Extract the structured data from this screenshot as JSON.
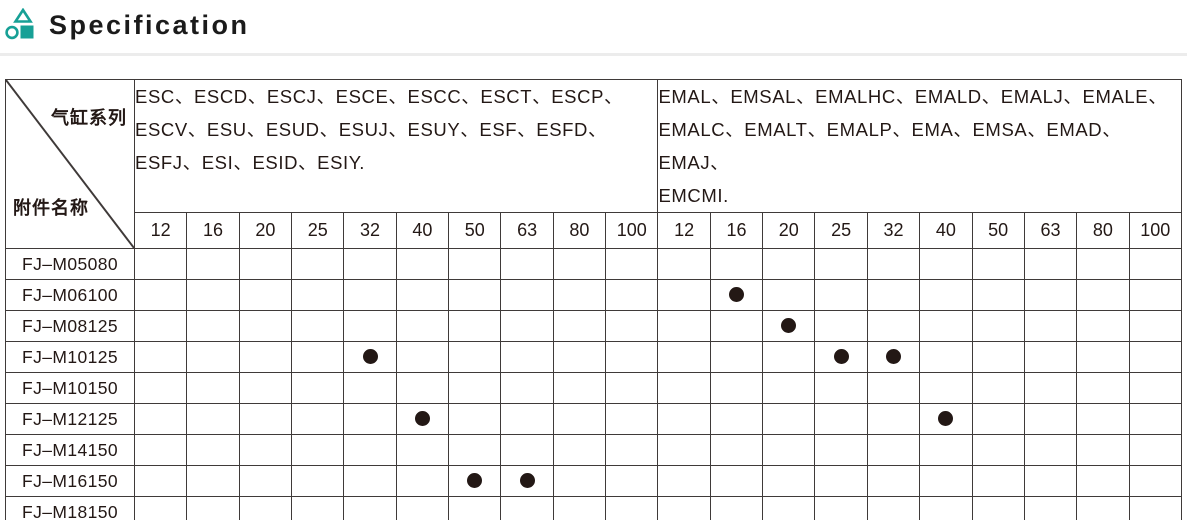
{
  "page": {
    "title": "Specification",
    "accent_color": "#17a096",
    "grid_line_color": "#3f3a39",
    "dot_color": "#231815"
  },
  "table": {
    "corner": {
      "top_label": "气缸系列",
      "bottom_label": "附件名称"
    },
    "groups": [
      {
        "series_lines": [
          "ESC、ESCD、ESCJ、ESCE、ESCC、ESCT、ESCP、",
          "ESCV、ESU、ESUD、ESUJ、ESUY、ESF、ESFD、",
          "ESFJ、ESI、ESID、ESIY."
        ],
        "sizes": [
          "12",
          "16",
          "20",
          "25",
          "32",
          "40",
          "50",
          "63",
          "80",
          "100"
        ]
      },
      {
        "series_lines": [
          "EMAL、EMSAL、EMALHC、EMALD、EMALJ、EMALE、",
          "EMALC、EMALT、EMALP、EMA、EMSA、EMAD、EMAJ、",
          "EMCMI."
        ],
        "sizes": [
          "12",
          "16",
          "20",
          "25",
          "32",
          "40",
          "50",
          "63",
          "80",
          "100"
        ]
      }
    ],
    "rows": [
      {
        "name": "FJ–M05080",
        "marks": [
          [],
          []
        ]
      },
      {
        "name": "FJ–M06100",
        "marks": [
          [],
          [
            "16"
          ]
        ]
      },
      {
        "name": "FJ–M08125",
        "marks": [
          [],
          [
            "20"
          ]
        ]
      },
      {
        "name": "FJ–M10125",
        "marks": [
          [
            "32"
          ],
          [
            "25",
            "32"
          ]
        ]
      },
      {
        "name": "FJ–M10150",
        "marks": [
          [],
          []
        ]
      },
      {
        "name": "FJ–M12125",
        "marks": [
          [
            "40"
          ],
          [
            "40"
          ]
        ]
      },
      {
        "name": "FJ–M14150",
        "marks": [
          [],
          []
        ]
      },
      {
        "name": "FJ–M16150",
        "marks": [
          [
            "50",
            "63"
          ],
          []
        ]
      },
      {
        "name": "FJ–M18150",
        "marks": [
          [],
          []
        ]
      }
    ]
  }
}
